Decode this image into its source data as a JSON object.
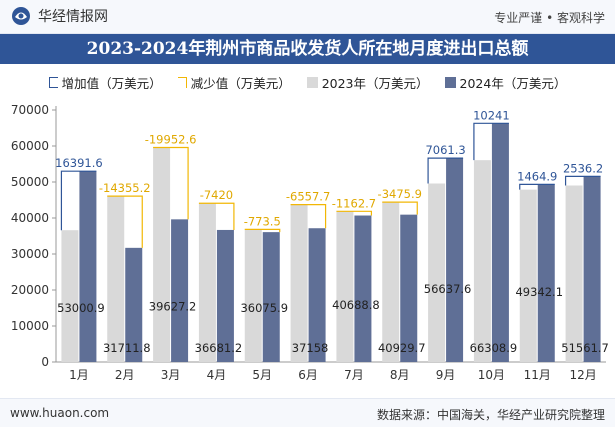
{
  "header": {
    "brand_name": "华经情报网",
    "tagline": "专业严谨 • 客观科学"
  },
  "footer": {
    "url": "www.huaon.com",
    "source": "数据来源：中国海关，华经产业研究院整理"
  },
  "colors": {
    "y2023": "#d9d9d9",
    "y2024": "#5f6f96",
    "increase": "#2f5597",
    "decrease": "#f2b705",
    "title_bg": "#2f5597"
  },
  "chart_data": {
    "type": "bar",
    "title": "2023-2024年荆州市商品收发货人所在地月度进出口总额",
    "legend": [
      "增加值（万美元）",
      "减少值（万美元）",
      "2023年（万美元）",
      "2024年（万美元）"
    ],
    "legend_position": "top",
    "categories": [
      "1月",
      "2月",
      "3月",
      "4月",
      "5月",
      "6月",
      "7月",
      "8月",
      "9月",
      "10月",
      "11月",
      "12月"
    ],
    "ylim": [
      0,
      70000
    ],
    "yticks": [
      0,
      10000,
      20000,
      30000,
      40000,
      50000,
      60000,
      70000
    ],
    "grid": false,
    "series": [
      {
        "name": "2023年（万美元）",
        "values": [
          36609.3,
          46067.0,
          59579.8,
          44101.2,
          36849.4,
          43715.7,
          41851.5,
          44405.6,
          49576.3,
          56067.9,
          47877.2,
          49025.5
        ]
      },
      {
        "name": "2024年（万美元）",
        "values": [
          53000.9,
          31711.8,
          39627.2,
          36681.2,
          36075.9,
          37158,
          40688.8,
          40929.7,
          56637.6,
          66308.9,
          49342.1,
          51561.7
        ]
      }
    ],
    "change_labels": [
      "16391.6",
      "-14355.2",
      "-19952.6",
      "-7420",
      "-773.5",
      "-6557.7",
      "-1162.7",
      "-3475.9",
      "7061.3",
      "10241",
      "1464.9",
      "2536.2"
    ],
    "y2024_labels": [
      "53000.9",
      "31711.8",
      "39627.2",
      "36681.2",
      "36075.9",
      "37158",
      "40688.8",
      "40929.7",
      "56637.6",
      "66308.9",
      "49342.1",
      "51561.7"
    ]
  }
}
